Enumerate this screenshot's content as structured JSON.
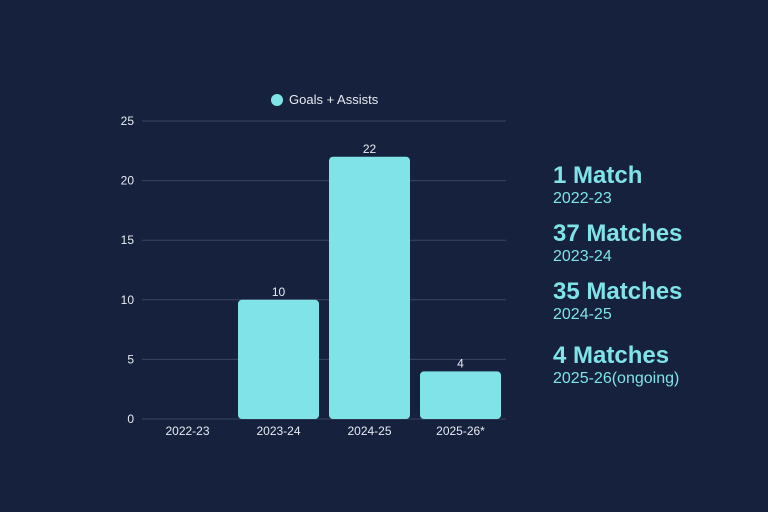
{
  "chart_data": {
    "type": "bar",
    "categories": [
      "2022-23",
      "2023-24",
      "2024-25",
      "2025-26*"
    ],
    "series": [
      {
        "name": "Goals + Assists",
        "values": [
          0,
          10,
          22,
          4
        ]
      }
    ],
    "data_labels": [
      "",
      "10",
      "22",
      "4"
    ],
    "yticks": [
      0,
      5,
      10,
      15,
      20,
      25
    ],
    "ylim": [
      0,
      25
    ],
    "grid": true,
    "legend_position": "top-center",
    "title": "",
    "xlabel": "",
    "ylabel": ""
  },
  "colors": {
    "background": "#16213d",
    "bar": "#7fe3e8",
    "accent": "#7fe3e8",
    "text": "#e6ebf2",
    "grid": "#3a4560"
  },
  "stats": [
    {
      "title": "1 Match",
      "season": "2022-23"
    },
    {
      "title": "37 Matches",
      "season": "2023-24"
    },
    {
      "title": "35 Matches",
      "season": "2024-25"
    },
    {
      "title": "4 Matches",
      "season": "2025-26(ongoing)"
    }
  ]
}
